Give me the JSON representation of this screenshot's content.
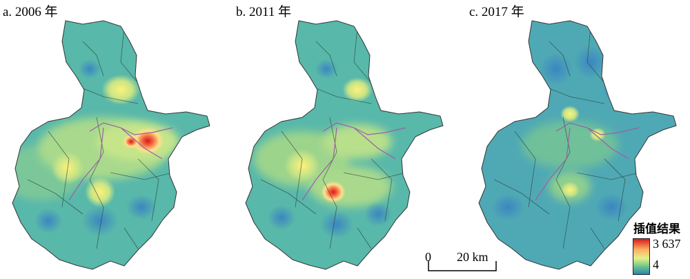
{
  "panels": [
    {
      "label": "a. 2006 年"
    },
    {
      "label": "b. 2011 年"
    },
    {
      "label": "c. 2017 年"
    }
  ],
  "legend": {
    "title": "插值结果",
    "max_label": "3 637",
    "min_label": "4",
    "max_value": 3637,
    "min_value": 4,
    "colors": [
      "#d7191c",
      "#fdae61",
      "#e6f08a",
      "#6cc58a",
      "#2b83ba"
    ]
  },
  "scalebar": {
    "zero_label": "0",
    "distance_label": "20 km",
    "distance_km": 20
  }
}
